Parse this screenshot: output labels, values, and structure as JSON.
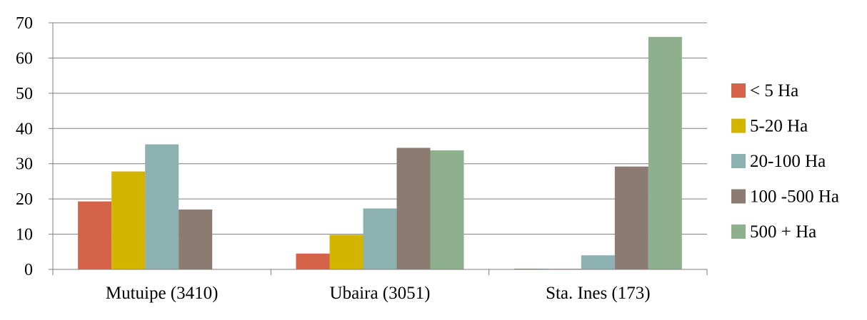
{
  "chart_data": {
    "type": "bar",
    "title": "",
    "xlabel": "",
    "ylabel": "",
    "ylim": [
      0,
      70
    ],
    "yticks": [
      0,
      10,
      20,
      30,
      40,
      50,
      60,
      70
    ],
    "grid": true,
    "legend_position": "right",
    "categories": [
      "Mutuipe (3410)",
      "Ubaira (3051)",
      "Sta. Ines (173)"
    ],
    "series": [
      {
        "name": "< 5 Ha",
        "color": "#d4634a",
        "values": [
          19.3,
          4.5,
          0.2
        ]
      },
      {
        "name": "5-20 Ha",
        "color": "#d3b500",
        "values": [
          27.8,
          9.8,
          0.2
        ]
      },
      {
        "name": "20-100 Ha",
        "color": "#8db0b0",
        "values": [
          35.5,
          17.3,
          4.0
        ]
      },
      {
        "name": "100 -500 Ha",
        "color": "#8b7b70",
        "values": [
          17.0,
          34.5,
          29.2
        ]
      },
      {
        "name": "500 + Ha",
        "color": "#8eb08c",
        "values": [
          0,
          33.8,
          66.0
        ]
      }
    ]
  }
}
